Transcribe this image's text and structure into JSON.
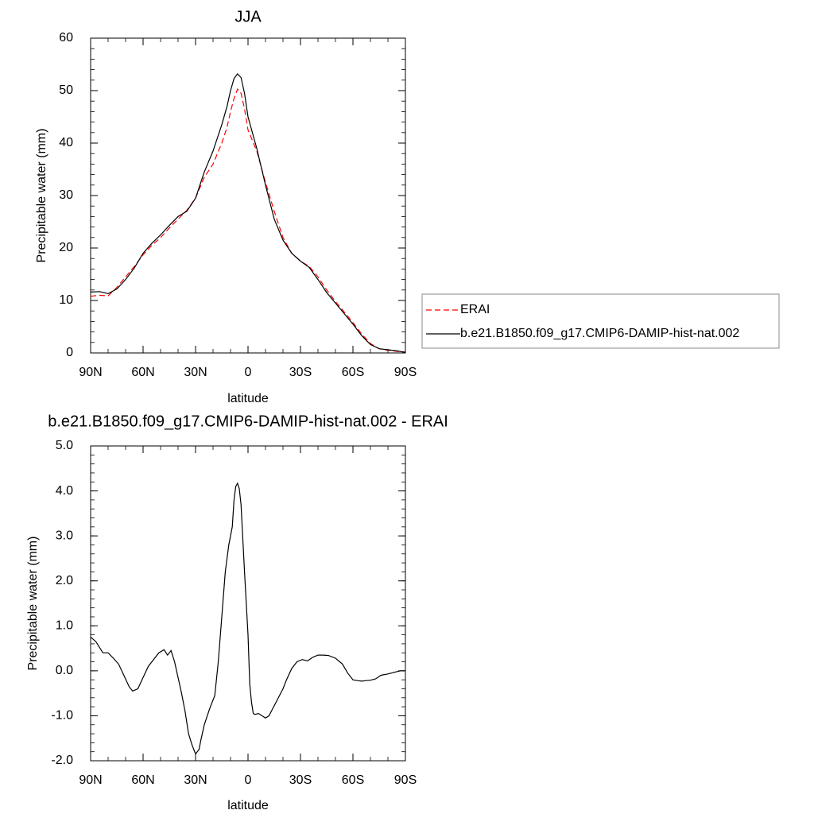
{
  "chart_data": [
    {
      "type": "line",
      "title": "JJA",
      "xlabel": "latitude",
      "ylabel": "Precipitable water (mm)",
      "xlim": [
        90,
        -90
      ],
      "ylim": [
        0,
        60
      ],
      "xticks": [
        90,
        60,
        30,
        0,
        -30,
        -60,
        -90
      ],
      "xtick_labels": [
        "90N",
        "60N",
        "30N",
        "0",
        "30S",
        "60S",
        "90S"
      ],
      "yticks": [
        0,
        10,
        20,
        30,
        40,
        50,
        60
      ],
      "ytick_labels": [
        "0",
        "10",
        "20",
        "30",
        "40",
        "50",
        "60"
      ],
      "legend_placement": "right",
      "series": [
        {
          "name": "ERAI",
          "color": "#ff0000",
          "dash": "dashed",
          "x": [
            90,
            85,
            80,
            75,
            70,
            65,
            60,
            55,
            50,
            45,
            40,
            35,
            30,
            25,
            20,
            15,
            12,
            10,
            8,
            6,
            4,
            2,
            0,
            -5,
            -10,
            -15,
            -20,
            -25,
            -30,
            -35,
            -40,
            -45,
            -50,
            -55,
            -60,
            -65,
            -70,
            -75,
            -80,
            -85,
            -90
          ],
          "y": [
            10.8,
            11.0,
            10.9,
            12.5,
            14.5,
            16.5,
            18.7,
            20.5,
            22.0,
            23.8,
            25.5,
            27.2,
            29.5,
            33.5,
            36.0,
            40.0,
            43.0,
            46.0,
            48.5,
            50.3,
            49.5,
            46.5,
            42.5,
            38.5,
            32.5,
            27.0,
            22.0,
            19.0,
            17.5,
            16.5,
            14.5,
            12.0,
            9.8,
            7.8,
            5.8,
            3.6,
            1.8,
            0.8,
            0.5,
            0.3,
            0.2
          ]
        },
        {
          "name": "b.e21.B1850.f09_g17.CMIP6-DAMIP-hist-nat.002",
          "color": "#000000",
          "dash": "solid",
          "x": [
            90,
            85,
            80,
            75,
            70,
            65,
            60,
            55,
            50,
            45,
            40,
            35,
            30,
            25,
            20,
            15,
            12,
            10,
            8,
            6,
            4,
            2,
            0,
            -5,
            -10,
            -15,
            -20,
            -25,
            -30,
            -35,
            -40,
            -45,
            -50,
            -55,
            -60,
            -65,
            -70,
            -75,
            -80,
            -85,
            -90
          ],
          "y": [
            11.6,
            11.7,
            11.3,
            12.2,
            14.0,
            16.2,
            19.0,
            20.9,
            22.5,
            24.3,
            26.0,
            27.0,
            29.5,
            34.5,
            38.5,
            43.5,
            47.0,
            50.0,
            52.3,
            53.2,
            52.5,
            49.5,
            45.0,
            39.0,
            32.0,
            25.5,
            21.5,
            19.0,
            17.5,
            16.3,
            14.0,
            11.5,
            9.5,
            7.5,
            5.5,
            3.3,
            1.6,
            0.8,
            0.6,
            0.4,
            0.1
          ]
        }
      ]
    },
    {
      "type": "line",
      "title": "b.e21.B1850.f09_g17.CMIP6-DAMIP-hist-nat.002 - ERAI",
      "xlabel": "latitude",
      "ylabel": "Precipitable water (mm)",
      "xlim": [
        90,
        -90
      ],
      "ylim": [
        -2.0,
        5.0
      ],
      "xticks": [
        90,
        60,
        30,
        0,
        -30,
        -60,
        -90
      ],
      "xtick_labels": [
        "90N",
        "60N",
        "30N",
        "0",
        "30S",
        "60S",
        "90S"
      ],
      "yticks": [
        -2.0,
        -1.0,
        0.0,
        1.0,
        2.0,
        3.0,
        4.0,
        5.0
      ],
      "ytick_labels": [
        "-2.0",
        "-1.0",
        "0.0",
        "1.0",
        "2.0",
        "3.0",
        "4.0",
        "5.0"
      ],
      "series": [
        {
          "color": "#000000",
          "dash": "solid",
          "x": [
            90,
            87,
            83,
            80,
            77,
            74,
            71,
            68,
            66,
            63,
            60,
            57,
            54,
            51,
            48,
            46,
            44,
            42,
            40,
            38,
            36,
            34,
            32,
            30,
            28,
            27,
            25,
            22,
            19,
            17,
            15,
            13,
            11,
            9,
            8,
            7,
            6,
            5,
            4,
            2,
            0,
            -1,
            -2,
            -3,
            -4,
            -6,
            -8,
            -10,
            -12,
            -14,
            -16,
            -18,
            -20,
            -22,
            -25,
            -28,
            -31,
            -34,
            -37,
            -40,
            -43,
            -46,
            -50,
            -54,
            -57,
            -60,
            -63,
            -65,
            -67,
            -70,
            -73,
            -76,
            -80,
            -84,
            -87,
            -90
          ],
          "y": [
            0.75,
            0.65,
            0.4,
            0.4,
            0.28,
            0.15,
            -0.1,
            -0.35,
            -0.45,
            -0.4,
            -0.15,
            0.1,
            0.25,
            0.4,
            0.47,
            0.35,
            0.45,
            0.2,
            -0.15,
            -0.5,
            -0.9,
            -1.4,
            -1.65,
            -1.85,
            -1.75,
            -1.55,
            -1.2,
            -0.85,
            -0.55,
            0.2,
            1.2,
            2.2,
            2.8,
            3.2,
            3.8,
            4.1,
            4.17,
            4.05,
            3.7,
            2.2,
            0.8,
            -0.3,
            -0.7,
            -0.95,
            -0.97,
            -0.95,
            -1.0,
            -1.05,
            -1.0,
            -0.85,
            -0.7,
            -0.55,
            -0.4,
            -0.2,
            0.05,
            0.2,
            0.25,
            0.22,
            0.3,
            0.35,
            0.35,
            0.34,
            0.28,
            0.15,
            -0.05,
            -0.2,
            -0.22,
            -0.23,
            -0.22,
            -0.21,
            -0.18,
            -0.1,
            -0.07,
            -0.03,
            0.0,
            0.0
          ]
        }
      ]
    }
  ]
}
